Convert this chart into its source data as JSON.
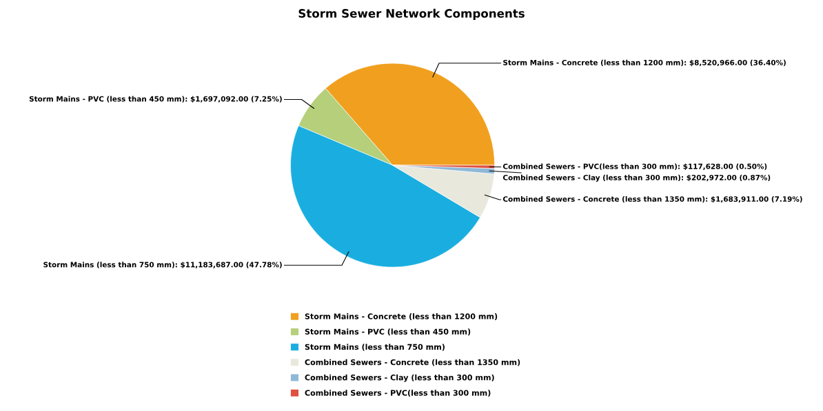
{
  "chart_data": {
    "type": "pie",
    "title": "Storm Sewer Network Components",
    "categories": [
      "Storm Mains - Concrete (less than 1200 mm)",
      "Storm Mains - PVC (less than 450 mm)",
      "Storm Mains (less than 750 mm)",
      "Combined Sewers - Concrete (less than 1350 mm)",
      "Combined Sewers - Clay (less than 300 mm)",
      "Combined Sewers - PVC(less than 300 mm)"
    ],
    "values": [
      8520966.0,
      1697092.0,
      11183687.0,
      1683911.0,
      202972.0,
      117628.0
    ],
    "value_labels": [
      ": $8,520,966.00 (36.40%)",
      ": $1,697,092.00 (7.25%)",
      ": $11,183,687.00 (47.78%)",
      ": $1,683,911.00 (7.19%)",
      ": $202,972.00 (0.87%)",
      ": $117,628.00 (0.50%)"
    ],
    "colors": [
      "#f0a01e",
      "#b5cf7a",
      "#1aaee0",
      "#e8e8dc",
      "#8fb8d8",
      "#e05040"
    ],
    "legend": "bottom"
  }
}
